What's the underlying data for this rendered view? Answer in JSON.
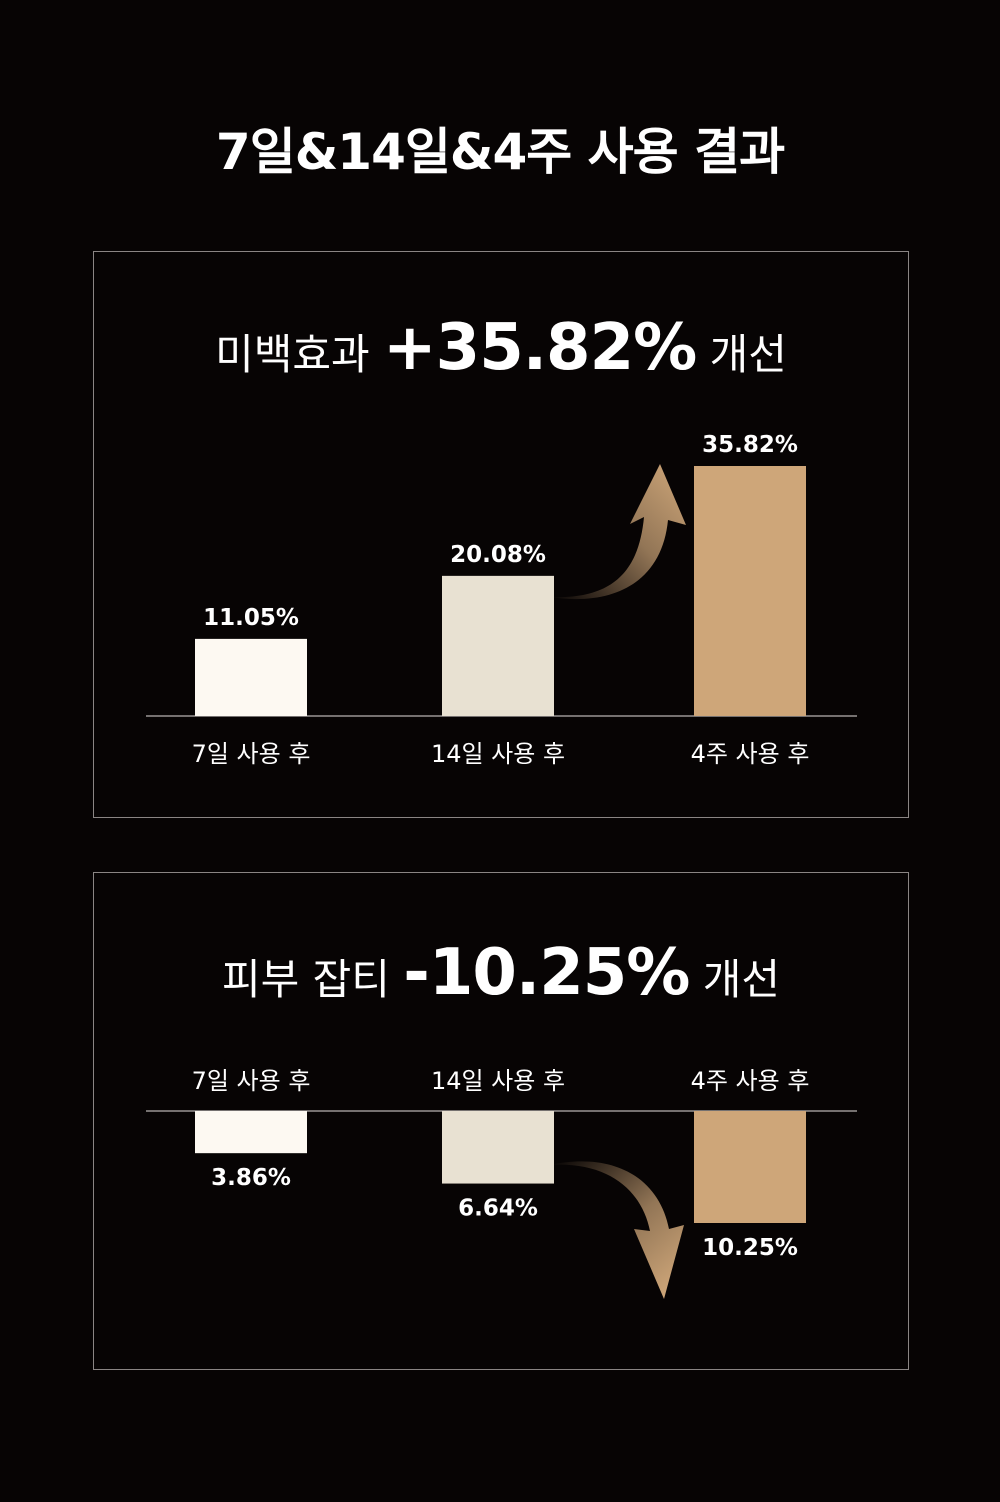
{
  "title": "7일&14일&4주 사용 결과",
  "colors": {
    "background": "#070404",
    "bar_1": "#fdf9f2",
    "bar_2": "#e8e1d2",
    "bar_3": "#cea679",
    "panel_border": "#8a8584",
    "baseline": "#9a9593"
  },
  "panels": [
    {
      "headline_prefix": "미백효과",
      "headline_value": "+35.82%",
      "headline_suffix": "개선"
    },
    {
      "headline_prefix": "피부 잡티",
      "headline_value": "-10.25%",
      "headline_suffix": "개선"
    }
  ],
  "chart_data": [
    {
      "type": "bar",
      "direction": "up",
      "categories": [
        "7일 사용 후",
        "14일 사용 후",
        "4주 사용 후"
      ],
      "values": [
        11.05,
        20.08,
        35.82
      ],
      "value_labels": [
        "11.05%",
        "20.08%",
        "35.82%"
      ],
      "title": "미백효과 +35.82% 개선",
      "arrow": "up"
    },
    {
      "type": "bar",
      "direction": "down",
      "categories": [
        "7일 사용 후",
        "14일 사용 후",
        "4주 사용 후"
      ],
      "values": [
        3.86,
        6.64,
        10.25
      ],
      "value_labels": [
        "3.86%",
        "6.64%",
        "10.25%"
      ],
      "title": "피부 잡티 -10.25% 개선",
      "arrow": "down"
    }
  ]
}
